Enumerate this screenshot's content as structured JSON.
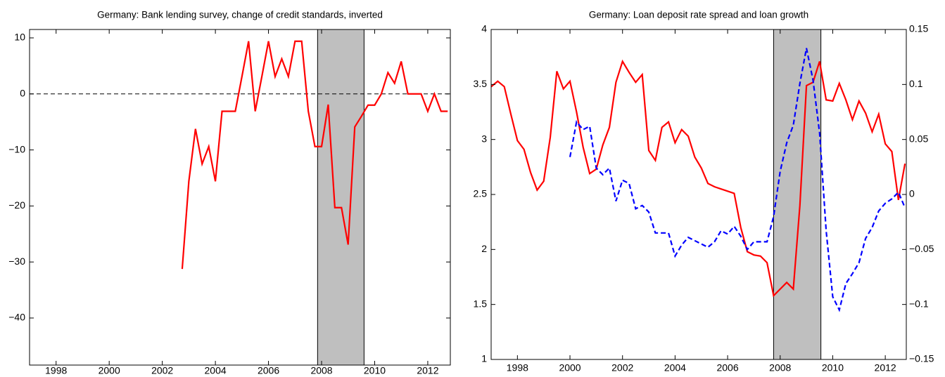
{
  "chart_data": [
    {
      "type": "line",
      "title": "Germany: Bank lending survey, change of credit standards, inverted",
      "x": [
        2002.75,
        2003,
        2003.25,
        2003.5,
        2003.75,
        2004,
        2004.25,
        2004.5,
        2004.75,
        2005,
        2005.25,
        2005.5,
        2005.75,
        2006,
        2006.25,
        2006.5,
        2006.75,
        2007,
        2007.25,
        2007.5,
        2007.75,
        2008,
        2008.25,
        2008.5,
        2008.75,
        2009,
        2009.25,
        2009.5,
        2009.75,
        2010,
        2010.25,
        2010.5,
        2010.75,
        2011,
        2011.25,
        2011.5,
        2011.75,
        2012,
        2012.25,
        2012.5,
        2012.75
      ],
      "series": [
        {
          "color": "#ff0000",
          "linestyle": "solid",
          "values": [
            -31.25,
            -15.6,
            -6.25,
            -12.5,
            -9.4,
            -15.6,
            -3.1,
            -3.1,
            -3.1,
            3.1,
            9.4,
            -3.1,
            3.1,
            9.4,
            3.1,
            6.25,
            3.1,
            9.4,
            9.4,
            -3.1,
            -9.4,
            -9.4,
            -1.9,
            -20.3,
            -20.3,
            -26.9,
            -5.9,
            -4,
            -2,
            -2,
            0,
            3.8,
            1.9,
            5.8,
            0,
            0,
            0,
            -3.1,
            0,
            -3.1,
            -3.1
          ]
        }
      ],
      "xlim": [
        1997,
        2012.85
      ],
      "xticks": [
        1998,
        2000,
        2002,
        2004,
        2006,
        2008,
        2010,
        2012
      ],
      "ylim": [
        -48.4,
        11.5
      ],
      "yticks": [
        {
          "value": -40,
          "label": "−40"
        },
        {
          "value": -30,
          "label": "−30"
        },
        {
          "value": -20,
          "label": "−20"
        },
        {
          "value": -10,
          "label": "−10"
        },
        0,
        10
      ],
      "hline": 0,
      "shade": [
        2007.85,
        2009.6
      ],
      "shade_color": "#bfbfbf"
    },
    {
      "type": "line",
      "title": "Germany: Loan deposit rate spread and loan growth",
      "x": [
        1997,
        1997.25,
        1997.5,
        1997.75,
        1998,
        1998.25,
        1998.5,
        1998.75,
        1999,
        1999.25,
        1999.5,
        1999.75,
        2000,
        2000.25,
        2000.5,
        2000.75,
        2001,
        2001.25,
        2001.5,
        2001.75,
        2002,
        2002.25,
        2002.5,
        2002.75,
        2003,
        2003.25,
        2003.5,
        2003.75,
        2004,
        2004.25,
        2004.5,
        2004.75,
        2005,
        2005.25,
        2005.5,
        2005.75,
        2006,
        2006.25,
        2006.5,
        2006.75,
        2007,
        2007.25,
        2007.5,
        2007.75,
        2008,
        2008.25,
        2008.5,
        2008.75,
        2009,
        2009.25,
        2009.5,
        2009.75,
        2010,
        2010.25,
        2010.5,
        2010.75,
        2011,
        2011.25,
        2011.5,
        2011.75,
        2012,
        2012.25,
        2012.5,
        2012.75
      ],
      "series": [
        {
          "color": "#ff0000",
          "linestyle": "solid",
          "axis": "y",
          "values": [
            3.48,
            3.53,
            3.48,
            3.23,
            2.99,
            2.91,
            2.7,
            2.54,
            2.62,
            3.02,
            3.62,
            3.46,
            3.53,
            3.25,
            2.93,
            2.69,
            2.73,
            2.95,
            3.11,
            3.52,
            3.71,
            3.61,
            3.52,
            3.59,
            2.9,
            2.81,
            3.11,
            3.16,
            2.97,
            3.09,
            3.03,
            2.84,
            2.74,
            2.6,
            2.57,
            2.55,
            2.53,
            2.51,
            2.2,
            1.98,
            1.95,
            1.94,
            1.88,
            1.58,
            1.64,
            1.7,
            1.64,
            2.4,
            3.49,
            3.52,
            3.71,
            3.36,
            3.35,
            3.51,
            3.36,
            3.18,
            3.35,
            3.24,
            3.07,
            3.23,
            2.96,
            2.89,
            2.45,
            2.78
          ]
        },
        {
          "color": "#0000ff",
          "linestyle": "dashed",
          "axis": "y2",
          "values": [
            null,
            null,
            null,
            null,
            null,
            null,
            null,
            null,
            null,
            null,
            null,
            null,
            0.034,
            0.066,
            0.059,
            0.062,
            0.024,
            0.018,
            0.024,
            -0.006,
            0.013,
            0.01,
            -0.013,
            -0.01,
            -0.016,
            -0.035,
            -0.035,
            -0.035,
            -0.056,
            -0.046,
            -0.039,
            -0.042,
            -0.045,
            -0.048,
            -0.043,
            -0.033,
            -0.036,
            -0.029,
            -0.038,
            -0.05,
            -0.043,
            -0.043,
            -0.043,
            -0.02,
            0.021,
            0.047,
            0.063,
            0.101,
            0.133,
            0.104,
            0.056,
            -0.033,
            -0.093,
            -0.105,
            -0.081,
            -0.072,
            -0.062,
            -0.04,
            -0.03,
            -0.015,
            -0.008,
            -0.004,
            0.002,
            -0.012
          ]
        }
      ],
      "xlim": [
        1997,
        2012.8
      ],
      "xticks": [
        1998,
        2000,
        2002,
        2004,
        2006,
        2008,
        2010,
        2012
      ],
      "ylim": [
        1,
        4
      ],
      "yticks": [
        1,
        1.5,
        2,
        2.5,
        3,
        3.5,
        4
      ],
      "y2lim": [
        -0.15,
        0.15
      ],
      "y2ticks": [
        {
          "value": -0.15,
          "label": "−0.15"
        },
        {
          "value": -0.1,
          "label": "−0.1"
        },
        {
          "value": -0.05,
          "label": "−0.05"
        },
        0,
        0.05,
        0.1,
        0.15
      ],
      "shade": [
        2007.75,
        2009.55
      ],
      "shade_color": "#bfbfbf"
    }
  ]
}
